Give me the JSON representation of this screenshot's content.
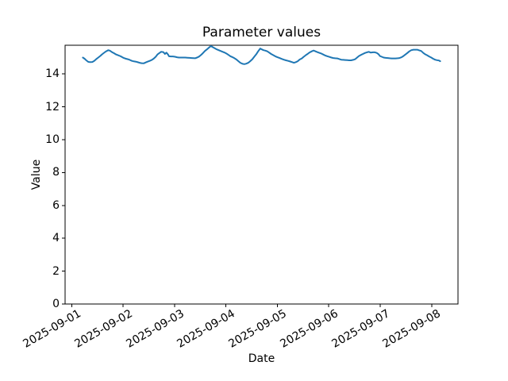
{
  "chart_data": {
    "type": "line",
    "title": "Parameter values",
    "xlabel": "Date",
    "ylabel": "Value",
    "line_color": "#1f77b4",
    "background_color": "#ffffff",
    "grid": false,
    "legend": "none",
    "x_unit": "hours since 2025-09-01 00:00",
    "xlim": [
      -3.1,
      180.3
    ],
    "ylim": [
      0,
      15.75
    ],
    "y_ticks": [
      0,
      2,
      4,
      6,
      8,
      10,
      12,
      14
    ],
    "x_ticks": [
      {
        "hours": 0,
        "label": "2025-09-01"
      },
      {
        "hours": 24,
        "label": "2025-09-02"
      },
      {
        "hours": 48,
        "label": "2025-09-03"
      },
      {
        "hours": 72,
        "label": "2025-09-04"
      },
      {
        "hours": 96,
        "label": "2025-09-05"
      },
      {
        "hours": 120,
        "label": "2025-09-06"
      },
      {
        "hours": 144,
        "label": "2025-09-07"
      },
      {
        "hours": 168,
        "label": "2025-09-08"
      }
    ],
    "series": [
      {
        "x_hours": [
          5.2,
          6.0,
          6.6,
          7.7,
          8.5,
          9.6,
          10.5,
          11.4,
          12.4,
          13.3,
          14.2,
          15.1,
          16.0,
          17.0,
          17.8,
          18.8,
          19.8,
          20.7,
          21.6,
          22.5,
          23.4,
          24.3,
          25.3,
          26.2,
          27.2,
          28.1,
          29.0,
          30.0,
          31.0,
          31.7,
          32.6,
          33.6,
          34.5,
          35.4,
          36.4,
          37.3,
          38.2,
          39.2,
          40.1,
          41.0,
          41.7,
          42.4,
          42.8,
          43.5,
          44.2,
          45.0,
          45.4,
          46.3,
          47.2,
          48.2,
          49.1,
          50.0,
          51.0,
          52.0,
          53.0,
          54.0,
          55.0,
          56.0,
          57.6,
          58.5,
          59.4,
          60.3,
          61.2,
          62.2,
          63.1,
          64.0,
          65.0,
          65.9,
          66.8,
          67.7,
          68.6,
          69.5,
          70.5,
          71.4,
          72.3,
          73.2,
          74.1,
          75.1,
          76.0,
          76.9,
          77.8,
          78.7,
          79.7,
          80.6,
          81.5,
          82.4,
          83.3,
          84.3,
          85.2,
          86.1,
          87.0,
          88.0,
          88.7,
          89.5,
          90.4,
          91.3,
          92.2,
          93.1,
          94.0,
          95.0,
          96.0,
          97.0,
          98.0,
          99.0,
          100.0,
          101.0,
          102.0,
          102.9,
          103.7,
          104.6,
          105.5,
          106.4,
          107.4,
          108.3,
          109.2,
          110.1,
          111.0,
          112.0,
          112.9,
          113.8,
          114.7,
          115.7,
          116.6,
          117.5,
          118.4,
          119.4,
          120.3,
          121.2,
          122.1,
          123.0,
          124.0,
          124.9,
          125.8,
          126.7,
          127.7,
          128.6,
          129.5,
          130.4,
          131.4,
          132.3,
          133.2,
          134.1,
          135.0,
          135.9,
          136.9,
          137.8,
          138.7,
          139.6,
          140.6,
          141.5,
          142.4,
          143.3,
          143.8,
          144.7,
          145.6,
          146.5,
          147.5,
          148.4,
          149.3,
          150.2,
          151.1,
          152.1,
          153.0,
          154.0,
          154.9,
          155.8,
          156.7,
          157.6,
          158.5,
          159.5,
          160.4,
          161.3,
          162.2,
          163.1,
          164.1,
          165.0,
          165.9,
          166.8,
          167.8,
          168.7,
          169.6,
          170.5,
          171.4,
          172.0
        ],
        "values": [
          15.0,
          14.93,
          14.85,
          14.74,
          14.72,
          14.73,
          14.8,
          14.9,
          15.0,
          15.1,
          15.2,
          15.29,
          15.38,
          15.45,
          15.42,
          15.33,
          15.26,
          15.19,
          15.14,
          15.1,
          15.04,
          14.97,
          14.93,
          14.9,
          14.85,
          14.8,
          14.77,
          14.75,
          14.71,
          14.68,
          14.66,
          14.65,
          14.7,
          14.75,
          14.8,
          14.85,
          14.93,
          15.05,
          15.2,
          15.28,
          15.35,
          15.34,
          15.33,
          15.22,
          15.3,
          15.18,
          15.08,
          15.07,
          15.07,
          15.05,
          15.02,
          15.0,
          15.0,
          15.0,
          15.0,
          14.99,
          14.98,
          14.97,
          14.96,
          15.0,
          15.06,
          15.15,
          15.26,
          15.4,
          15.5,
          15.6,
          15.7,
          15.63,
          15.56,
          15.5,
          15.45,
          15.4,
          15.35,
          15.3,
          15.24,
          15.16,
          15.08,
          15.02,
          14.96,
          14.88,
          14.78,
          14.68,
          14.62,
          14.6,
          14.63,
          14.68,
          14.78,
          14.9,
          15.05,
          15.2,
          15.38,
          15.55,
          15.5,
          15.45,
          15.42,
          15.38,
          15.3,
          15.22,
          15.15,
          15.08,
          15.02,
          14.97,
          14.92,
          14.87,
          14.83,
          14.8,
          14.76,
          14.72,
          14.68,
          14.72,
          14.78,
          14.88,
          14.95,
          15.05,
          15.14,
          15.22,
          15.31,
          15.38,
          15.43,
          15.38,
          15.33,
          15.28,
          15.24,
          15.18,
          15.12,
          15.08,
          15.04,
          15.0,
          14.97,
          14.96,
          14.95,
          14.91,
          14.87,
          14.86,
          14.85,
          14.84,
          14.83,
          14.83,
          14.86,
          14.9,
          15.0,
          15.1,
          15.16,
          15.22,
          15.28,
          15.32,
          15.35,
          15.3,
          15.32,
          15.32,
          15.28,
          15.2,
          15.1,
          15.05,
          15.0,
          14.98,
          14.97,
          14.96,
          14.95,
          14.95,
          14.95,
          14.96,
          14.97,
          15.02,
          15.1,
          15.19,
          15.28,
          15.38,
          15.45,
          15.48,
          15.48,
          15.48,
          15.44,
          15.4,
          15.28,
          15.2,
          15.14,
          15.07,
          15.0,
          14.93,
          14.87,
          14.84,
          14.82,
          14.78
        ]
      }
    ]
  }
}
